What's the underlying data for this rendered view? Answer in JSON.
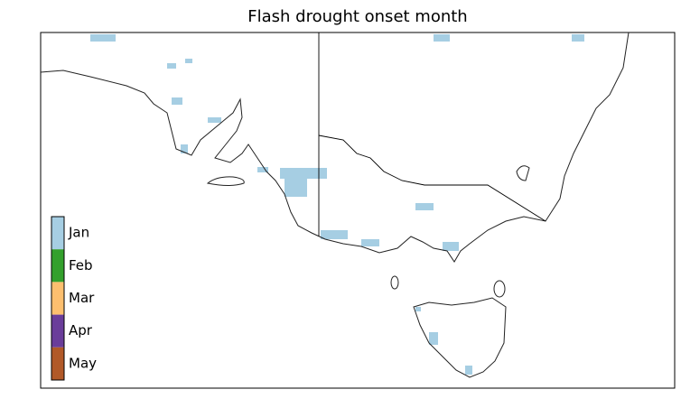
{
  "map": {
    "title": "Flash drought onset month",
    "legend": {
      "items": [
        {
          "label": "Jan",
          "color": "#a6cee3"
        },
        {
          "label": "Feb",
          "color": "#33a02c"
        },
        {
          "label": "Mar",
          "color": "#fdbf6f"
        },
        {
          "label": "Apr",
          "color": "#6a3d9a"
        },
        {
          "label": "May",
          "color": "#b15928"
        }
      ]
    }
  }
}
